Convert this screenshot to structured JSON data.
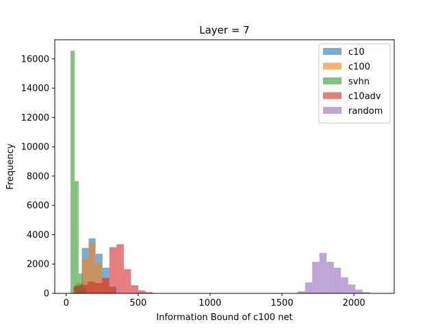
{
  "chart_data": {
    "type": "histogram",
    "title": "Layer = 7",
    "xlabel": "Information Bound of c100 net",
    "ylabel": "Frequency",
    "xlim": [
      -80,
      2280
    ],
    "ylim": [
      0,
      17300
    ],
    "xticks": [
      0,
      500,
      1000,
      1500,
      2000
    ],
    "yticks": [
      0,
      2000,
      4000,
      6000,
      8000,
      10000,
      12000,
      14000,
      16000
    ],
    "legend_position": "top-right",
    "grid": false,
    "series": [
      {
        "name": "c10",
        "color": "#1f77b4",
        "bins": [
          {
            "x0": 60,
            "x1": 108,
            "count": 550
          },
          {
            "x0": 108,
            "x1": 156,
            "count": 3100
          },
          {
            "x0": 156,
            "x1": 204,
            "count": 3750
          },
          {
            "x0": 204,
            "x1": 252,
            "count": 2700
          },
          {
            "x0": 252,
            "x1": 300,
            "count": 1750
          },
          {
            "x0": 300,
            "x1": 348,
            "count": 450
          }
        ]
      },
      {
        "name": "c100",
        "color": "#ff7f0e",
        "bins": [
          {
            "x0": 65,
            "x1": 110,
            "count": 700
          },
          {
            "x0": 110,
            "x1": 155,
            "count": 2350
          },
          {
            "x0": 155,
            "x1": 200,
            "count": 3450
          },
          {
            "x0": 200,
            "x1": 245,
            "count": 2100
          },
          {
            "x0": 245,
            "x1": 290,
            "count": 1050
          },
          {
            "x0": 290,
            "x1": 335,
            "count": 350
          }
        ]
      },
      {
        "name": "svhn",
        "color": "#2ca02c",
        "bins": [
          {
            "x0": 30,
            "x1": 58,
            "count": 16550
          },
          {
            "x0": 58,
            "x1": 86,
            "count": 7650
          },
          {
            "x0": 86,
            "x1": 114,
            "count": 1350
          },
          {
            "x0": 114,
            "x1": 142,
            "count": 350
          }
        ]
      },
      {
        "name": "c10adv",
        "color": "#d62728",
        "bins": [
          {
            "x0": 50,
            "x1": 100,
            "count": 500
          },
          {
            "x0": 100,
            "x1": 150,
            "count": 600
          },
          {
            "x0": 150,
            "x1": 200,
            "count": 800
          },
          {
            "x0": 200,
            "x1": 250,
            "count": 700
          },
          {
            "x0": 250,
            "x1": 300,
            "count": 1050
          },
          {
            "x0": 300,
            "x1": 350,
            "count": 3150
          },
          {
            "x0": 350,
            "x1": 400,
            "count": 3350
          },
          {
            "x0": 400,
            "x1": 450,
            "count": 1650
          },
          {
            "x0": 450,
            "x1": 500,
            "count": 550
          },
          {
            "x0": 500,
            "x1": 550,
            "count": 200
          },
          {
            "x0": 550,
            "x1": 600,
            "count": 80
          }
        ]
      },
      {
        "name": "random",
        "color": "#9467bd",
        "bins": [
          {
            "x0": 1610,
            "x1": 1660,
            "count": 150
          },
          {
            "x0": 1660,
            "x1": 1710,
            "count": 750
          },
          {
            "x0": 1710,
            "x1": 1760,
            "count": 2150
          },
          {
            "x0": 1760,
            "x1": 1810,
            "count": 2750
          },
          {
            "x0": 1810,
            "x1": 1860,
            "count": 2150
          },
          {
            "x0": 1860,
            "x1": 1910,
            "count": 1750
          },
          {
            "x0": 1910,
            "x1": 1960,
            "count": 1100
          },
          {
            "x0": 1960,
            "x1": 2010,
            "count": 600
          },
          {
            "x0": 2010,
            "x1": 2060,
            "count": 250
          },
          {
            "x0": 2060,
            "x1": 2110,
            "count": 80
          }
        ]
      }
    ]
  }
}
